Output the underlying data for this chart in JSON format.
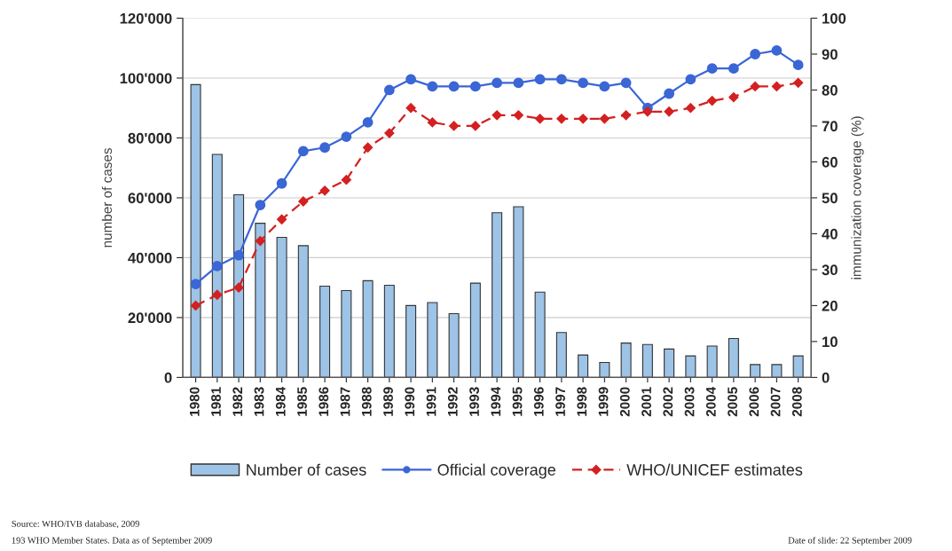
{
  "chart_data": {
    "type": "bar",
    "categories": [
      "1980",
      "1981",
      "1982",
      "1983",
      "1984",
      "1985",
      "1986",
      "1987",
      "1988",
      "1989",
      "1990",
      "1991",
      "1992",
      "1993",
      "1994",
      "1995",
      "1996",
      "1997",
      "1998",
      "1999",
      "2000",
      "2001",
      "2002",
      "2003",
      "2004",
      "2005",
      "2006",
      "2007",
      "2008"
    ],
    "ylabel": "number of cases",
    "y2label": "immunization coverage (%)",
    "ylim": [
      0,
      120000
    ],
    "yticks": [
      0,
      {
        "value": 20000,
        "label": "20'000"
      },
      {
        "value": 40000,
        "label": "40'000"
      },
      {
        "value": 60000,
        "label": "60'000"
      },
      {
        "value": 80000,
        "label": "80'000"
      },
      {
        "value": 100000,
        "label": "100'000"
      },
      {
        "value": 120000,
        "label": "120'000"
      }
    ],
    "y2lim": [
      0,
      100
    ],
    "y2ticks": [
      0,
      10,
      20,
      30,
      40,
      50,
      60,
      70,
      80,
      90,
      100
    ],
    "grid": "y",
    "legend": "bottom",
    "series": [
      {
        "name": "Number of cases",
        "color": "#9dc3e6",
        "values": [
          97800,
          74500,
          61000,
          51500,
          46800,
          44000,
          30500,
          29000,
          32300,
          30800,
          24000,
          25000,
          21300,
          31500,
          55000,
          57000,
          28500,
          15000,
          7500,
          5000,
          11500,
          11000,
          9500,
          7200,
          10500,
          13000,
          4300,
          4300,
          7200
        ]
      },
      {
        "name": "Official coverage",
        "type": "line",
        "axis": "y2",
        "color": "#3a66d6",
        "marker": "circle",
        "line_style": "solid",
        "values": [
          26,
          31,
          34,
          48,
          54,
          63,
          64,
          67,
          71,
          80,
          83,
          81,
          81,
          81,
          82,
          82,
          83,
          83,
          82,
          81,
          82,
          75,
          79,
          83,
          86,
          86,
          90,
          91,
          87
        ]
      },
      {
        "name": "WHO/UNICEF estimates",
        "type": "line",
        "axis": "y2",
        "color": "#d42020",
        "marker": "diamond",
        "line_style": "dashed",
        "values": [
          20,
          23,
          25,
          38,
          44,
          49,
          52,
          55,
          64,
          68,
          75,
          71,
          70,
          70,
          73,
          73,
          72,
          72,
          72,
          72,
          73,
          74,
          74,
          75,
          77,
          78,
          81,
          81,
          82
        ]
      }
    ],
    "annotations": [
      "Source: WHO/IVB database, 2009",
      "193 WHO Member States. Data as of September 2009",
      "Date of slide: 22 September 2009"
    ]
  }
}
